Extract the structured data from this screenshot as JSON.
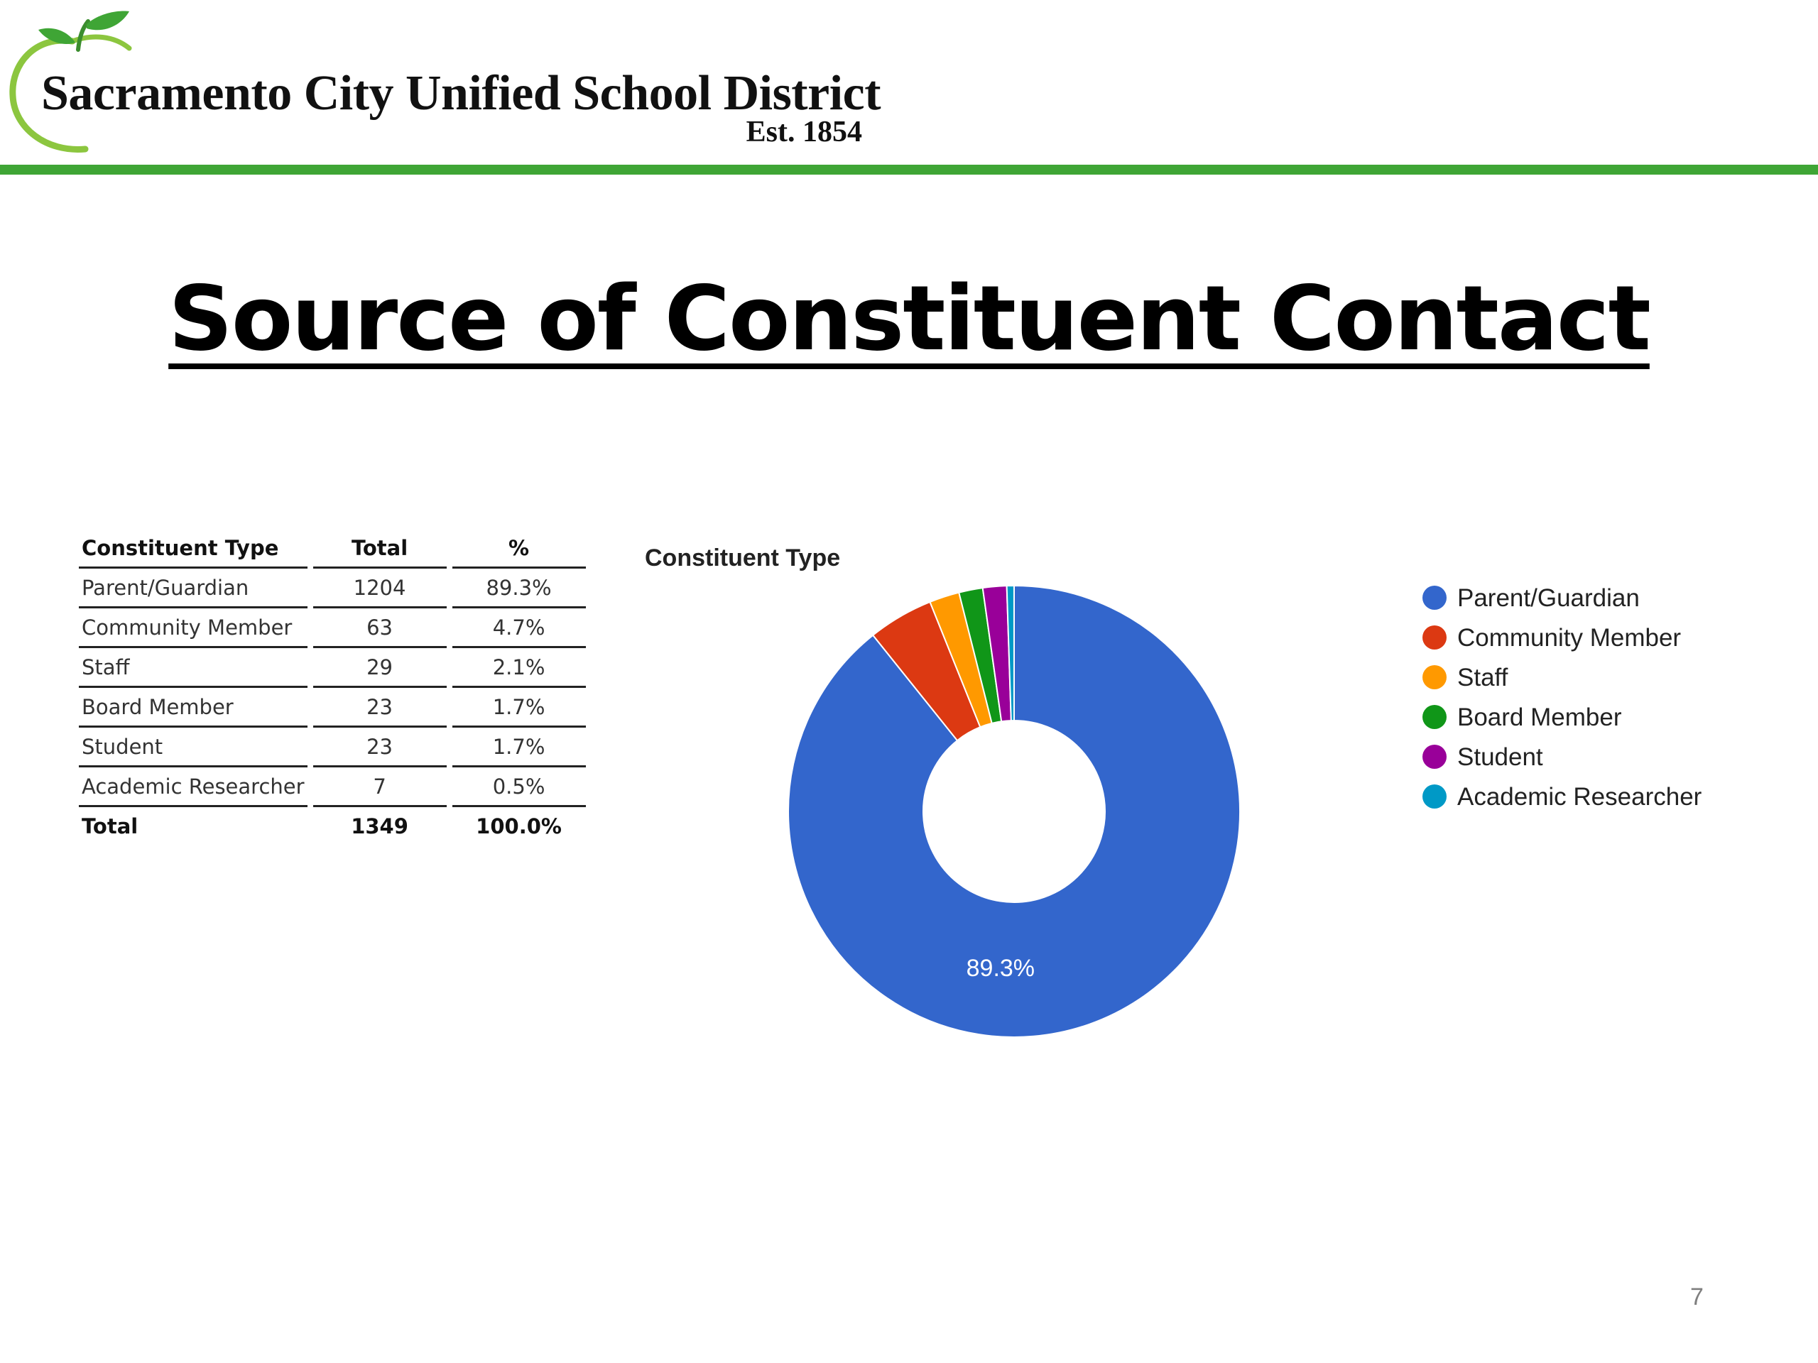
{
  "header": {
    "org_name": "Sacramento City Unified School District",
    "established": "Est. 1854",
    "accent_color": "#3fa535"
  },
  "slide": {
    "title": "Source of Constituent Contact",
    "page_number": "7"
  },
  "table": {
    "columns": [
      "Constituent Type",
      "Total",
      "%"
    ],
    "rows": [
      [
        "Parent/Guardian",
        "1204",
        "89.3%"
      ],
      [
        "Community Member",
        "63",
        "4.7%"
      ],
      [
        "Staff",
        "29",
        "2.1%"
      ],
      [
        "Board Member",
        "23",
        "1.7%"
      ],
      [
        "Student",
        "23",
        "1.7%"
      ],
      [
        "Academic Researcher",
        "7",
        "0.5%"
      ]
    ],
    "total_row": [
      "Total",
      "1349",
      "100.0%"
    ]
  },
  "chart_data": {
    "type": "pie",
    "donut": true,
    "title": "Constituent Type",
    "categories": [
      "Parent/Guardian",
      "Community Member",
      "Staff",
      "Board Member",
      "Student",
      "Academic Researcher"
    ],
    "values": [
      1204,
      63,
      29,
      23,
      23,
      7
    ],
    "colors": [
      "#3366cc",
      "#dc3912",
      "#ff9900",
      "#109618",
      "#990099",
      "#0099c6"
    ],
    "data_labels": [
      "89.3%",
      "",
      "",
      "",
      "",
      ""
    ],
    "legend_position": "right"
  }
}
